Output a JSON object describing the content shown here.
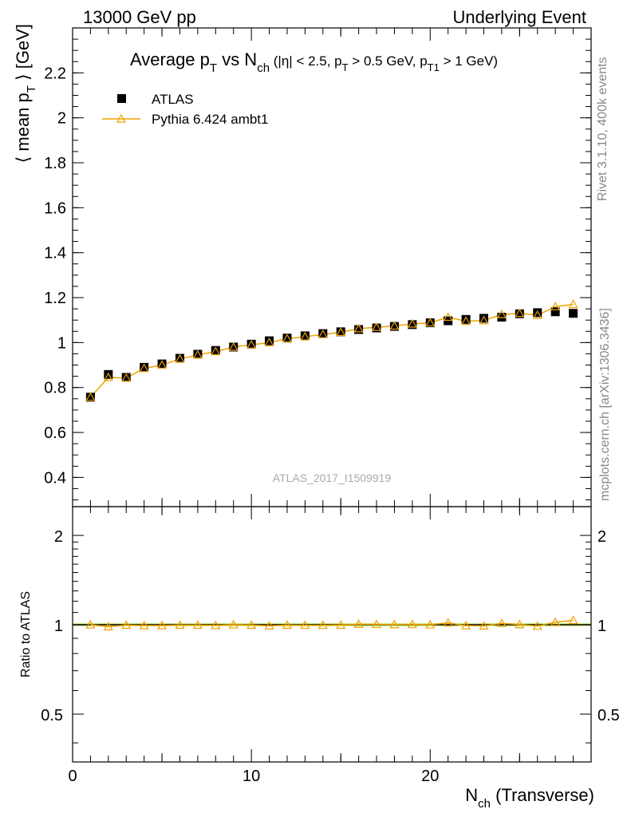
{
  "header": {
    "left": "13000 GeV pp",
    "right": "Underlying Event"
  },
  "side": {
    "rivet": "Rivet 3.1.10,  400k events",
    "mcplots": "mcplots.cern.ch [arXiv:1306.3436]"
  },
  "title": {
    "p1": "Average p",
    "p1_sub": "T",
    "p2": " vs N",
    "p2_sub": "ch",
    "p3": " (|η| < 2.5, p",
    "p3_sub": "T",
    "p4": " > 0.5 GeV, p",
    "p4_sub": "T1",
    "p5": " > 1 GeV)"
  },
  "ylabel": {
    "p1": "⟨ mean p",
    "p1_sub": "T",
    "p2": " ⟩ [GeV]"
  },
  "ratio_ylabel": "Ratio to ATLAS",
  "xlabel": {
    "p1": "N",
    "p1_sub": "ch",
    "p2": " (Transverse)"
  },
  "analysis_id": "ATLAS_2017_I1509919",
  "colors": {
    "data": "#000000",
    "mc": "#f0a000",
    "ratio_band": "#c8f080",
    "ratio_line": "#000000"
  },
  "chart_data": {
    "type": "scatter",
    "x": [
      1,
      2,
      3,
      4,
      5,
      6,
      7,
      8,
      9,
      10,
      11,
      12,
      13,
      14,
      15,
      16,
      17,
      18,
      19,
      20,
      21,
      22,
      23,
      24,
      25,
      26,
      27,
      28
    ],
    "xlim": [
      0,
      29
    ],
    "xticks": [
      0,
      10,
      20
    ],
    "ylim": [
      0.27,
      2.4
    ],
    "yticks": [
      0.4,
      0.6,
      0.8,
      1,
      1.2,
      1.4,
      1.6,
      1.8,
      2,
      2.2
    ],
    "series": [
      {
        "name": "ATLAS",
        "marker": "square",
        "values": [
          0.757,
          0.858,
          0.845,
          0.89,
          0.905,
          0.93,
          0.948,
          0.965,
          0.98,
          0.993,
          1.008,
          1.02,
          1.03,
          1.04,
          1.048,
          1.058,
          1.065,
          1.072,
          1.08,
          1.088,
          1.097,
          1.103,
          1.108,
          1.113,
          1.128,
          1.133,
          1.137,
          1.13
        ]
      },
      {
        "name": "Pythia 6.424 ambt1",
        "marker": "triangle",
        "values": [
          0.757,
          0.845,
          0.842,
          0.885,
          0.9,
          0.927,
          0.945,
          0.96,
          0.98,
          0.99,
          1.0,
          1.017,
          1.026,
          1.036,
          1.046,
          1.062,
          1.068,
          1.074,
          1.083,
          1.088,
          1.113,
          1.095,
          1.098,
          1.125,
          1.13,
          1.122,
          1.16,
          1.17
        ]
      }
    ],
    "ratio": {
      "ylim": [
        0.345,
        2.5
      ],
      "yticks": [
        0.5,
        1,
        2
      ],
      "values": [
        1.0,
        0.985,
        0.997,
        0.994,
        0.994,
        0.997,
        0.997,
        0.995,
        1.0,
        0.997,
        0.992,
        0.997,
        0.996,
        0.996,
        0.998,
        1.004,
        1.003,
        1.002,
        1.003,
        1.0,
        1.015,
        0.993,
        0.991,
        1.011,
        1.002,
        0.99,
        1.02,
        1.035
      ]
    }
  }
}
